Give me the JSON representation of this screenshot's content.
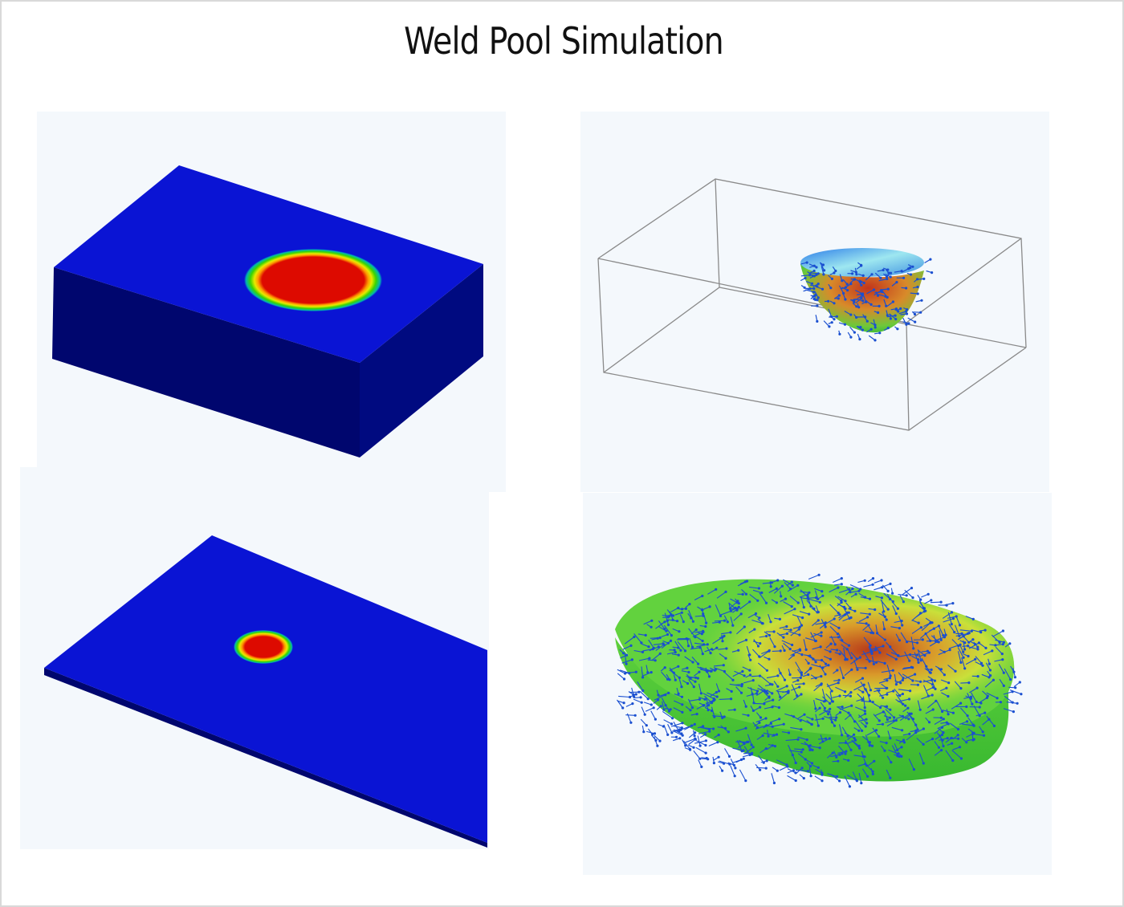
{
  "title": "Weld Pool Simulation",
  "colors": {
    "plate_top": "#0a14d4",
    "plate_side": "#00066e",
    "pool_core": "#dd0a00",
    "pool_ring": [
      "#ff9a00",
      "#e7ea00",
      "#3ad500",
      "#00b6b0"
    ],
    "velocity_arrow": "#1040c8",
    "pool_surface": "#49c92e",
    "panel_background": "#f4f8fc"
  },
  "panels": [
    {
      "name": "thick-plate-temperature",
      "contents": [
        "plate",
        "weld-pool"
      ]
    },
    {
      "name": "wireframe-pool-velocity",
      "contents": [
        "wireframe-box",
        "weld-pool",
        "velocity-arrows"
      ]
    },
    {
      "name": "thin-plate-temperature",
      "contents": [
        "plate",
        "weld-pool"
      ]
    },
    {
      "name": "pool-shape-velocity",
      "contents": [
        "weld-pool",
        "velocity-arrows"
      ]
    }
  ]
}
